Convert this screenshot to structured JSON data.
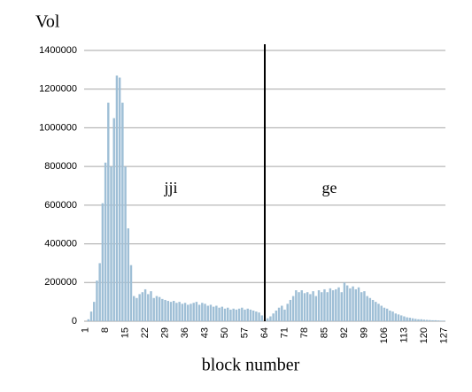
{
  "chart_data": {
    "type": "bar",
    "title": "Vol",
    "x_label": "block number",
    "annotations": [
      "jji",
      "ge"
    ],
    "categories": [
      "1",
      null,
      null,
      null,
      null,
      null,
      null,
      "8",
      null,
      null,
      null,
      null,
      null,
      null,
      "15",
      null,
      null,
      null,
      null,
      null,
      null,
      "22",
      null,
      null,
      null,
      null,
      null,
      null,
      "29",
      null,
      null,
      null,
      null,
      null,
      null,
      "36",
      null,
      null,
      null,
      null,
      null,
      null,
      "43",
      null,
      null,
      null,
      null,
      null,
      null,
      "50",
      null,
      null,
      null,
      null,
      null,
      null,
      "57",
      null,
      null,
      null,
      null,
      null,
      null,
      "64",
      null,
      null,
      null,
      null,
      null,
      null,
      "71",
      null,
      null,
      null,
      null,
      null,
      null,
      "78",
      null,
      null,
      null,
      null,
      null,
      null,
      "85",
      null,
      null,
      null,
      null,
      null,
      null,
      "92",
      null,
      null,
      null,
      null,
      null,
      null,
      "99",
      null,
      null,
      null,
      null,
      null,
      null,
      "106",
      null,
      null,
      null,
      null,
      null,
      null,
      "113",
      null,
      null,
      null,
      null,
      null,
      null,
      "120",
      null,
      null,
      null,
      null,
      null,
      null,
      "127"
    ],
    "values": [
      0,
      10000,
      50000,
      100000,
      210000,
      300000,
      610000,
      820000,
      1130000,
      800000,
      1050000,
      1270000,
      1260000,
      1130000,
      800000,
      480000,
      290000,
      130000,
      120000,
      140000,
      150000,
      165000,
      140000,
      155000,
      120000,
      130000,
      125000,
      115000,
      110000,
      105000,
      100000,
      105000,
      95000,
      100000,
      90000,
      95000,
      85000,
      90000,
      95000,
      100000,
      85000,
      95000,
      90000,
      80000,
      85000,
      75000,
      80000,
      70000,
      75000,
      65000,
      70000,
      60000,
      65000,
      60000,
      65000,
      70000,
      60000,
      65000,
      60000,
      55000,
      50000,
      45000,
      30000,
      10000,
      15000,
      25000,
      40000,
      55000,
      70000,
      80000,
      60000,
      90000,
      110000,
      130000,
      160000,
      150000,
      160000,
      145000,
      150000,
      140000,
      155000,
      130000,
      160000,
      150000,
      165000,
      150000,
      170000,
      160000,
      165000,
      175000,
      150000,
      200000,
      185000,
      170000,
      180000,
      165000,
      175000,
      150000,
      155000,
      130000,
      120000,
      110000,
      100000,
      90000,
      80000,
      70000,
      65000,
      55000,
      50000,
      40000,
      35000,
      30000,
      25000,
      20000,
      18000,
      15000,
      12000,
      10000,
      10000,
      8000,
      7000,
      6000,
      5000,
      5000,
      4000,
      3000,
      3000
    ],
    "color": "#9fbfd6",
    "ylim": [
      0,
      1400000
    ],
    "yticks": [
      0,
      200000,
      400000,
      600000,
      800000,
      1000000,
      1200000,
      1400000
    ],
    "grid": true
  }
}
